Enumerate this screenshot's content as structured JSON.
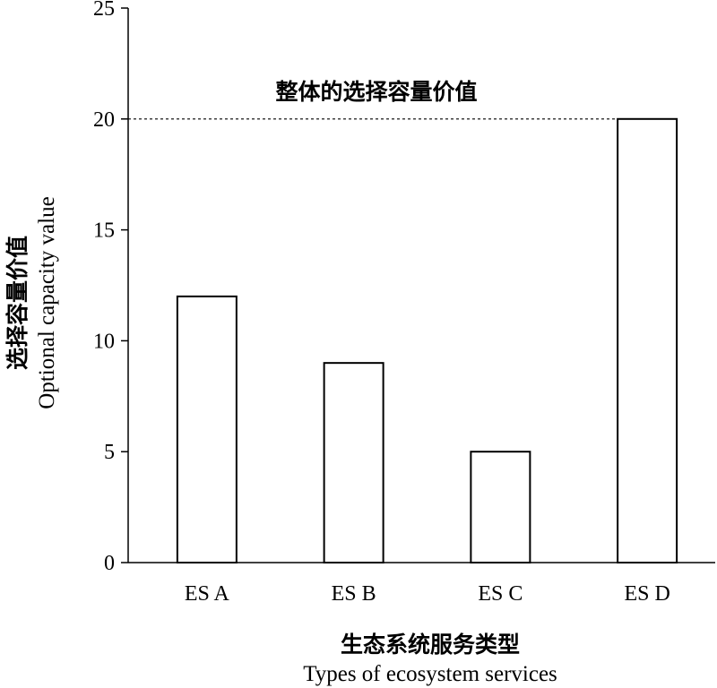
{
  "chart_data": {
    "type": "bar",
    "categories": [
      "ES A",
      "ES B",
      "ES C",
      "ES D"
    ],
    "values": [
      12,
      9,
      5,
      20
    ],
    "title": "",
    "xlabel_cn": "生态系统服务类型",
    "xlabel": "Types of ecosystem services",
    "ylabel_cn": "选择容量价值",
    "ylabel": "Optional capacity value",
    "ylim": [
      0,
      25
    ],
    "yticks": [
      "0",
      "5",
      "10",
      "15",
      "20",
      "25"
    ],
    "reference_line": {
      "value": 20,
      "label": "整体的选择容量价值",
      "style": "dashed"
    },
    "grid": false,
    "legend": "none",
    "bar_fill": "#ffffff",
    "bar_stroke": "#000000"
  }
}
